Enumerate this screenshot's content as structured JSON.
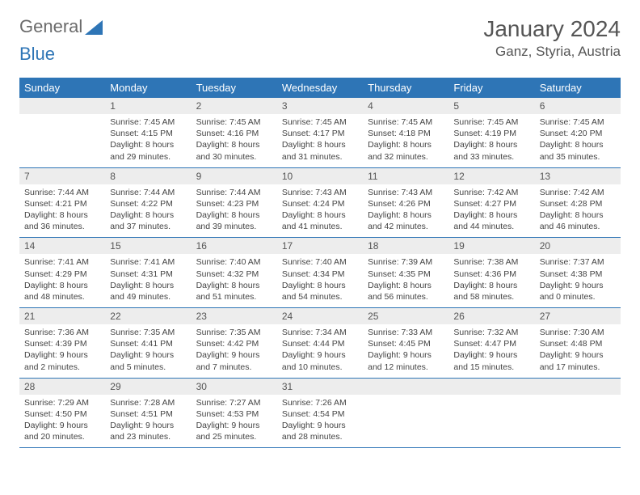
{
  "logo": {
    "text1": "General",
    "text2": "Blue",
    "triangle_color": "#2e75b6"
  },
  "header": {
    "month": "January 2024",
    "location": "Ganz, Styria, Austria"
  },
  "colors": {
    "header_bg": "#2e75b6",
    "header_text": "#ffffff",
    "daynum_bg": "#ededed",
    "cell_border": "#2e75b6",
    "body_text": "#444444"
  },
  "weekdays": [
    "Sunday",
    "Monday",
    "Tuesday",
    "Wednesday",
    "Thursday",
    "Friday",
    "Saturday"
  ],
  "weeks": [
    [
      {
        "empty": true
      },
      {
        "n": "1",
        "sr": "7:45 AM",
        "ss": "4:15 PM",
        "dl": "8 hours and 29 minutes."
      },
      {
        "n": "2",
        "sr": "7:45 AM",
        "ss": "4:16 PM",
        "dl": "8 hours and 30 minutes."
      },
      {
        "n": "3",
        "sr": "7:45 AM",
        "ss": "4:17 PM",
        "dl": "8 hours and 31 minutes."
      },
      {
        "n": "4",
        "sr": "7:45 AM",
        "ss": "4:18 PM",
        "dl": "8 hours and 32 minutes."
      },
      {
        "n": "5",
        "sr": "7:45 AM",
        "ss": "4:19 PM",
        "dl": "8 hours and 33 minutes."
      },
      {
        "n": "6",
        "sr": "7:45 AM",
        "ss": "4:20 PM",
        "dl": "8 hours and 35 minutes."
      }
    ],
    [
      {
        "n": "7",
        "sr": "7:44 AM",
        "ss": "4:21 PM",
        "dl": "8 hours and 36 minutes."
      },
      {
        "n": "8",
        "sr": "7:44 AM",
        "ss": "4:22 PM",
        "dl": "8 hours and 37 minutes."
      },
      {
        "n": "9",
        "sr": "7:44 AM",
        "ss": "4:23 PM",
        "dl": "8 hours and 39 minutes."
      },
      {
        "n": "10",
        "sr": "7:43 AM",
        "ss": "4:24 PM",
        "dl": "8 hours and 41 minutes."
      },
      {
        "n": "11",
        "sr": "7:43 AM",
        "ss": "4:26 PM",
        "dl": "8 hours and 42 minutes."
      },
      {
        "n": "12",
        "sr": "7:42 AM",
        "ss": "4:27 PM",
        "dl": "8 hours and 44 minutes."
      },
      {
        "n": "13",
        "sr": "7:42 AM",
        "ss": "4:28 PM",
        "dl": "8 hours and 46 minutes."
      }
    ],
    [
      {
        "n": "14",
        "sr": "7:41 AM",
        "ss": "4:29 PM",
        "dl": "8 hours and 48 minutes."
      },
      {
        "n": "15",
        "sr": "7:41 AM",
        "ss": "4:31 PM",
        "dl": "8 hours and 49 minutes."
      },
      {
        "n": "16",
        "sr": "7:40 AM",
        "ss": "4:32 PM",
        "dl": "8 hours and 51 minutes."
      },
      {
        "n": "17",
        "sr": "7:40 AM",
        "ss": "4:34 PM",
        "dl": "8 hours and 54 minutes."
      },
      {
        "n": "18",
        "sr": "7:39 AM",
        "ss": "4:35 PM",
        "dl": "8 hours and 56 minutes."
      },
      {
        "n": "19",
        "sr": "7:38 AM",
        "ss": "4:36 PM",
        "dl": "8 hours and 58 minutes."
      },
      {
        "n": "20",
        "sr": "7:37 AM",
        "ss": "4:38 PM",
        "dl": "9 hours and 0 minutes."
      }
    ],
    [
      {
        "n": "21",
        "sr": "7:36 AM",
        "ss": "4:39 PM",
        "dl": "9 hours and 2 minutes."
      },
      {
        "n": "22",
        "sr": "7:35 AM",
        "ss": "4:41 PM",
        "dl": "9 hours and 5 minutes."
      },
      {
        "n": "23",
        "sr": "7:35 AM",
        "ss": "4:42 PM",
        "dl": "9 hours and 7 minutes."
      },
      {
        "n": "24",
        "sr": "7:34 AM",
        "ss": "4:44 PM",
        "dl": "9 hours and 10 minutes."
      },
      {
        "n": "25",
        "sr": "7:33 AM",
        "ss": "4:45 PM",
        "dl": "9 hours and 12 minutes."
      },
      {
        "n": "26",
        "sr": "7:32 AM",
        "ss": "4:47 PM",
        "dl": "9 hours and 15 minutes."
      },
      {
        "n": "27",
        "sr": "7:30 AM",
        "ss": "4:48 PM",
        "dl": "9 hours and 17 minutes."
      }
    ],
    [
      {
        "n": "28",
        "sr": "7:29 AM",
        "ss": "4:50 PM",
        "dl": "9 hours and 20 minutes."
      },
      {
        "n": "29",
        "sr": "7:28 AM",
        "ss": "4:51 PM",
        "dl": "9 hours and 23 minutes."
      },
      {
        "n": "30",
        "sr": "7:27 AM",
        "ss": "4:53 PM",
        "dl": "9 hours and 25 minutes."
      },
      {
        "n": "31",
        "sr": "7:26 AM",
        "ss": "4:54 PM",
        "dl": "9 hours and 28 minutes."
      },
      {
        "empty": true
      },
      {
        "empty": true
      },
      {
        "empty": true
      }
    ]
  ],
  "labels": {
    "sunrise": "Sunrise:",
    "sunset": "Sunset:",
    "daylight": "Daylight:"
  }
}
